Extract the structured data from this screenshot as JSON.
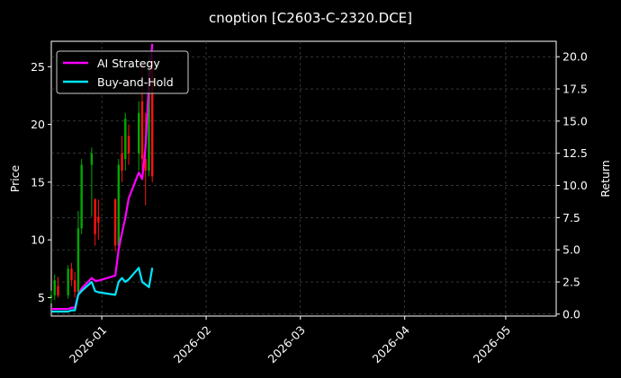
{
  "chart_data": {
    "type": "line",
    "title": "cnoption [C2603-C-2320.DCE]",
    "ylabel_left": "Price",
    "ylabel_right": "Return",
    "x_ticks": [
      "2026-01",
      "2026-02",
      "2026-03",
      "2026-04",
      "2026-05"
    ],
    "x_range": [
      "2025-12-17",
      "2026-05-16"
    ],
    "y_left_ticks": [
      5,
      10,
      15,
      20,
      25
    ],
    "y_left_range": [
      3.4,
      27.2
    ],
    "y_right_ticks": [
      "0.0",
      "2.5",
      "5.0",
      "7.5",
      "10.0",
      "12.5",
      "15.0",
      "17.5",
      "20.0"
    ],
    "y_right_range": [
      -0.15,
      21.2
    ],
    "grid": true,
    "legend_position": "top-left",
    "colors": {
      "up": "#00aa00",
      "down": "#ff1111",
      "strategy": "#ff00ff",
      "buyhold": "#00e5ff",
      "background": "#000000"
    },
    "series": [
      {
        "name": "AI Strategy",
        "axis": "right",
        "x": [
          "2025-12-17",
          "2025-12-18",
          "2025-12-19",
          "2025-12-22",
          "2025-12-23",
          "2025-12-24",
          "2025-12-25",
          "2025-12-26",
          "2025-12-29",
          "2025-12-30",
          "2025-12-31",
          "2026-01-05",
          "2026-01-06",
          "2026-01-07",
          "2026-01-08",
          "2026-01-09",
          "2026-01-12",
          "2026-01-13",
          "2026-01-14",
          "2026-01-15",
          "2026-01-16"
        ],
        "values": [
          0.4,
          0.4,
          0.4,
          0.4,
          0.5,
          0.5,
          1.5,
          2.0,
          2.8,
          2.6,
          2.6,
          3.0,
          5.0,
          6.3,
          7.5,
          9.0,
          11.0,
          10.5,
          13.0,
          18.0,
          21.0
        ]
      },
      {
        "name": "Buy-and-Hold",
        "axis": "right",
        "x": [
          "2025-12-17",
          "2025-12-18",
          "2025-12-19",
          "2025-12-22",
          "2025-12-23",
          "2025-12-24",
          "2025-12-25",
          "2025-12-26",
          "2025-12-29",
          "2025-12-30",
          "2025-12-31",
          "2026-01-05",
          "2026-01-06",
          "2026-01-07",
          "2026-01-08",
          "2026-01-09",
          "2026-01-12",
          "2026-01-13",
          "2026-01-14",
          "2026-01-15",
          "2026-01-16"
        ],
        "values": [
          0.2,
          0.2,
          0.2,
          0.2,
          0.3,
          0.3,
          1.5,
          1.8,
          2.5,
          1.8,
          1.7,
          1.5,
          2.5,
          2.8,
          2.5,
          2.7,
          3.6,
          2.5,
          2.3,
          2.1,
          3.6
        ]
      }
    ],
    "candles": [
      {
        "date": "2025-12-17",
        "open": 5.0,
        "high": 5.6,
        "low": 4.5,
        "close": 5.2
      },
      {
        "date": "2025-12-18",
        "open": 5.2,
        "high": 7.0,
        "low": 4.8,
        "close": 6.5
      },
      {
        "date": "2025-12-19",
        "open": 6.0,
        "high": 6.8,
        "low": 5.0,
        "close": 5.2
      },
      {
        "date": "2025-12-22",
        "open": 5.2,
        "high": 7.8,
        "low": 4.9,
        "close": 7.5
      },
      {
        "date": "2025-12-23",
        "open": 7.5,
        "high": 8.0,
        "low": 6.0,
        "close": 6.5
      },
      {
        "date": "2025-12-24",
        "open": 6.5,
        "high": 7.2,
        "low": 5.0,
        "close": 5.5
      },
      {
        "date": "2025-12-25",
        "open": 5.5,
        "high": 12.5,
        "low": 5.2,
        "close": 11.0
      },
      {
        "date": "2025-12-26",
        "open": 11.0,
        "high": 17.0,
        "low": 10.5,
        "close": 16.5
      },
      {
        "date": "2025-12-29",
        "open": 16.5,
        "high": 18.0,
        "low": 12.0,
        "close": 17.5
      },
      {
        "date": "2025-12-30",
        "open": 13.5,
        "high": 13.6,
        "low": 9.5,
        "close": 10.5
      },
      {
        "date": "2025-12-31",
        "open": 12.0,
        "high": 13.5,
        "low": 10.0,
        "close": 11.5
      },
      {
        "date": "2026-01-05",
        "open": 13.5,
        "high": 13.6,
        "low": 9.0,
        "close": 9.5
      },
      {
        "date": "2026-01-06",
        "open": 9.5,
        "high": 17.0,
        "low": 9.0,
        "close": 16.5
      },
      {
        "date": "2026-01-07",
        "open": 17.5,
        "high": 19.0,
        "low": 15.0,
        "close": 16.0
      },
      {
        "date": "2026-01-08",
        "open": 17.0,
        "high": 21.0,
        "low": 16.0,
        "close": 20.5
      },
      {
        "date": "2026-01-09",
        "open": 19.0,
        "high": 20.0,
        "low": 16.5,
        "close": 17.5
      },
      {
        "date": "2026-01-12",
        "open": 17.5,
        "high": 22.0,
        "low": 16.0,
        "close": 21.0
      },
      {
        "date": "2026-01-13",
        "open": 22.0,
        "high": 25.5,
        "low": 16.0,
        "close": 17.0
      },
      {
        "date": "2026-01-14",
        "open": 17.0,
        "high": 21.0,
        "low": 13.0,
        "close": 16.0
      },
      {
        "date": "2026-01-15",
        "open": 16.0,
        "high": 26.0,
        "low": 15.5,
        "close": 25.5
      },
      {
        "date": "2026-01-16",
        "open": 25.5,
        "high": 26.0,
        "low": 15.0,
        "close": 15.5
      }
    ]
  }
}
